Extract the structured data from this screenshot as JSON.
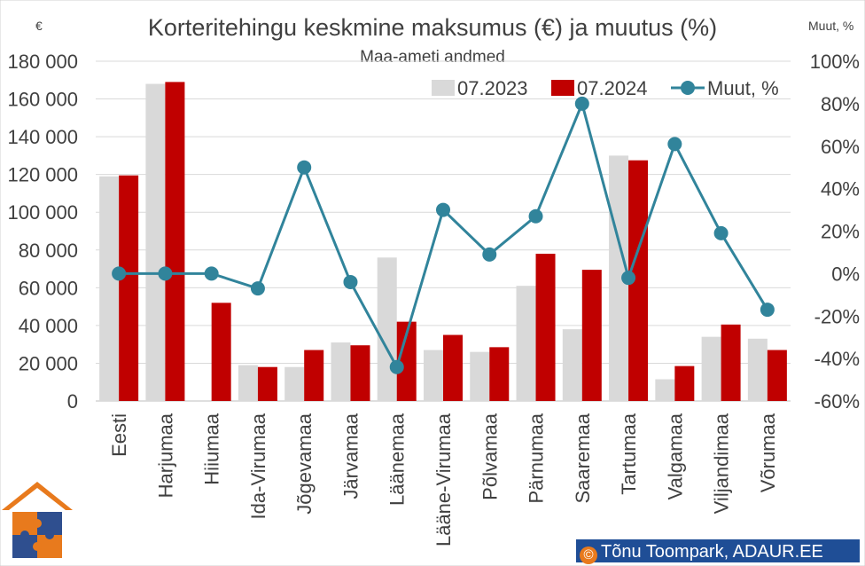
{
  "chart_data": {
    "type": "bar",
    "title": "Korteritehingu keskmine maksumus (€) ja muutus (%)",
    "subtitle": "Maa-ameti andmed",
    "y_left_unit": "€",
    "y_right_unit": "Muut, %",
    "categories": [
      "Eesti",
      "Harjumaa",
      "Hiiumaa",
      "Ida-Virumaa",
      "Jõgevamaa",
      "Järvamaa",
      "Läänemaa",
      "Lääne-Virumaa",
      "Põlvamaa",
      "Pärnumaa",
      "Saaremaa",
      "Tartumaa",
      "Valgamaa",
      "Viljandimaa",
      "Võrumaa"
    ],
    "series": [
      {
        "name": "07.2023",
        "kind": "bar",
        "axis": "left",
        "color": "#d9d9d9",
        "values": [
          119000,
          168000,
          0,
          19000,
          18000,
          31000,
          76000,
          27000,
          26000,
          61000,
          38000,
          130000,
          11500,
          34000,
          33000
        ]
      },
      {
        "name": "07.2024",
        "kind": "bar",
        "axis": "left",
        "color": "#c00000",
        "values": [
          119500,
          169000,
          52000,
          18000,
          27000,
          29500,
          42000,
          35000,
          28500,
          78000,
          69500,
          127500,
          18500,
          40500,
          27000
        ]
      },
      {
        "name": "Muut, %",
        "kind": "line",
        "axis": "right",
        "color": "#31849b",
        "values": [
          0,
          0,
          0,
          -7,
          50,
          -4,
          -44,
          30,
          9,
          27,
          80,
          -2,
          61,
          19,
          -17
        ]
      }
    ],
    "y_left": {
      "min": 0,
      "max": 180000,
      "step": 20000,
      "tick_labels": [
        "0",
        "20 000",
        "40 000",
        "60 000",
        "80 000",
        "100 000",
        "120 000",
        "140 000",
        "160 000",
        "180 000"
      ]
    },
    "y_right": {
      "min": -60,
      "max": 100,
      "step": 20,
      "tick_labels": [
        "-60%",
        "-40%",
        "-20%",
        "0%",
        "20%",
        "40%",
        "60%",
        "80%",
        "100%"
      ]
    },
    "legend_position": "top-right",
    "grid": "horizontal"
  },
  "credit": {
    "mark": "©",
    "text": "Tõnu Toompark, ADAUR.EE"
  },
  "colors": {
    "bar_2023": "#d9d9d9",
    "bar_2024": "#c00000",
    "line": "#31849b",
    "grid": "#d9d9d9",
    "text": "#404040",
    "credit_bg": "#1f4e96"
  }
}
